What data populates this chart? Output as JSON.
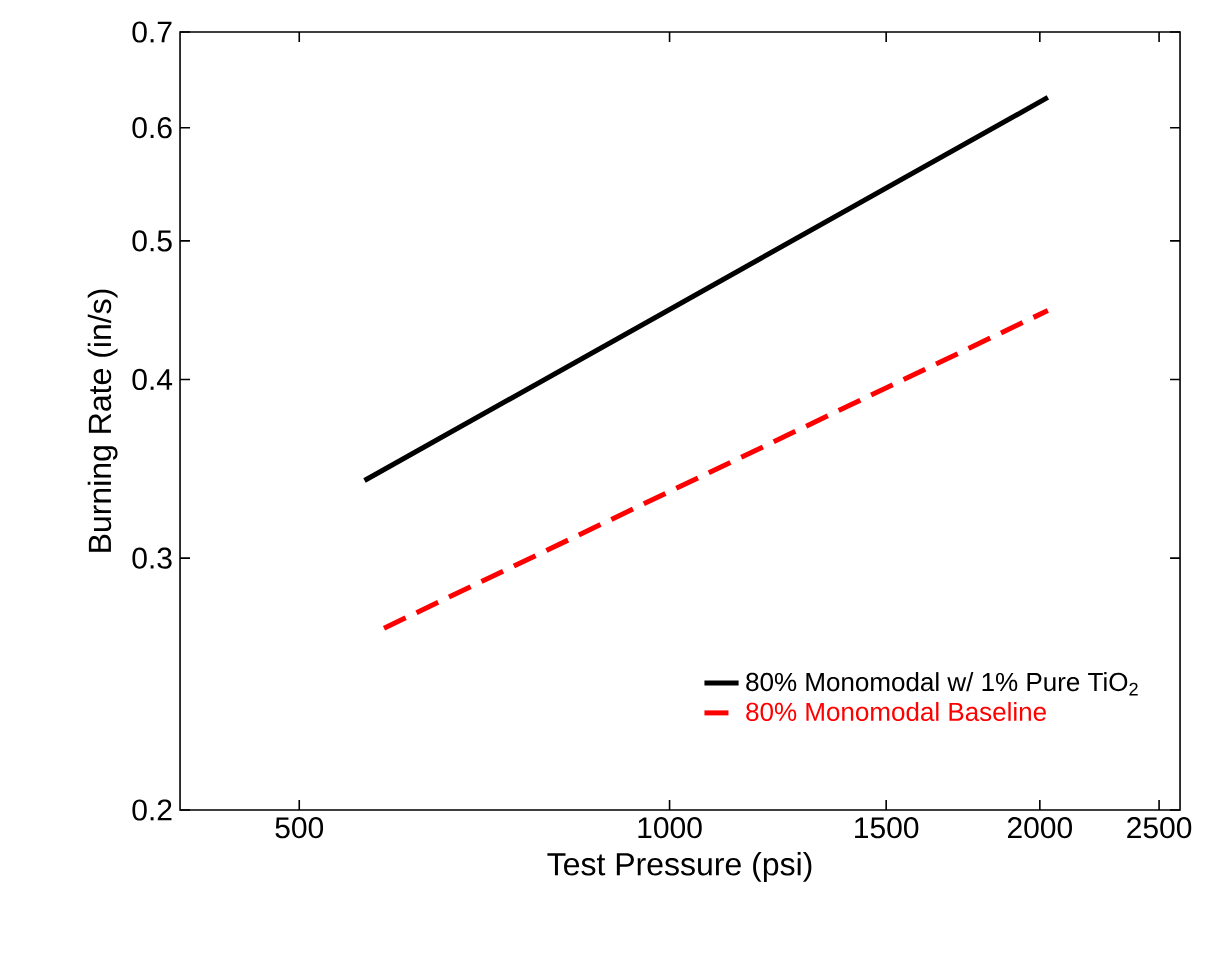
{
  "chart_data": {
    "type": "line",
    "xlabel": "Test Pressure (psi)",
    "ylabel": "Burning Rate (in/s)",
    "log": "xy",
    "xlim": [
      400,
      2600
    ],
    "ylim": [
      0.2,
      0.7
    ],
    "xticks": [
      500,
      1000,
      1500,
      2000,
      2500
    ],
    "yticks": [
      0.2,
      0.3,
      0.4,
      0.5,
      0.6,
      0.7
    ],
    "grid": false,
    "legend": "bottom right",
    "marker": "none",
    "series": [
      {
        "name": "80% Monomodal w/ 1% Pure TiO$_{2}$",
        "color": "#000000",
        "line_style": "solid",
        "x": [
          565,
          2030
        ],
        "values": [
          0.34,
          0.63
        ]
      },
      {
        "name": "80% Monomodal Baseline",
        "color": "#ff0000",
        "line_style": "dashed",
        "x": [
          586,
          2030
        ],
        "values": [
          0.268,
          0.447
        ]
      }
    ]
  }
}
